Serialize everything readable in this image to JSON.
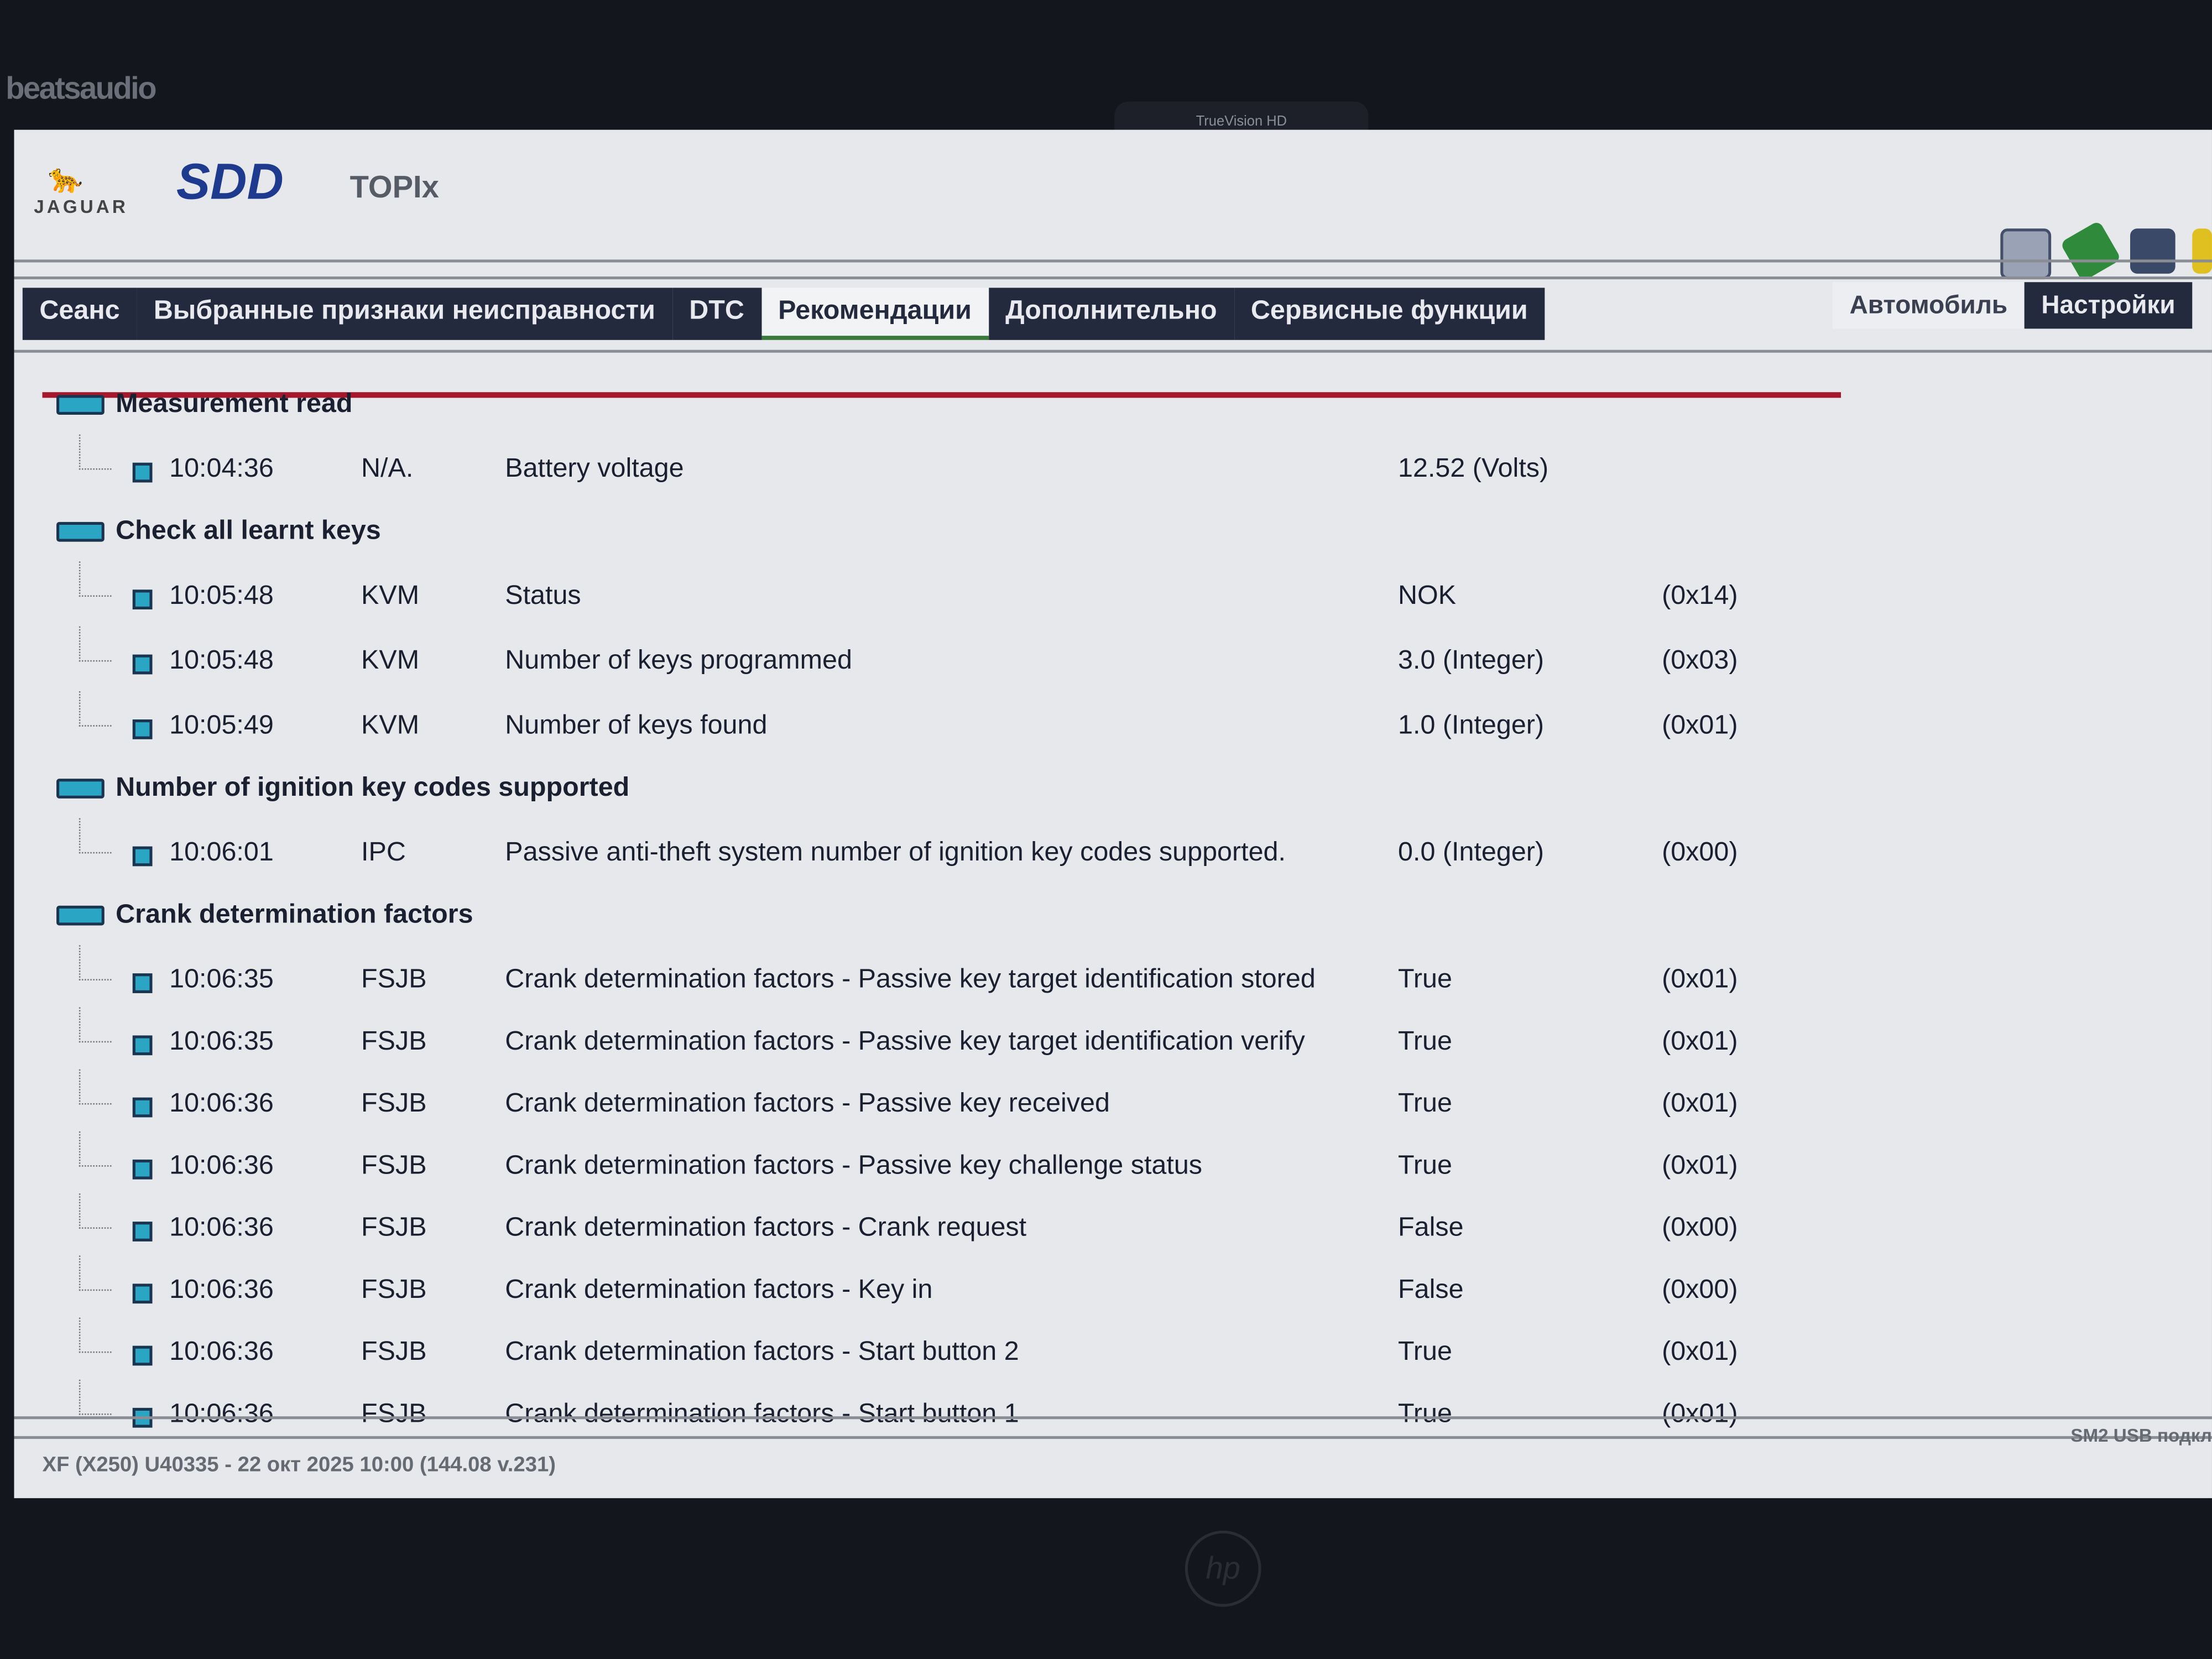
{
  "bezel": {
    "brand": "beatsaudio",
    "camera_label": "TrueVision HD",
    "laptop_logo": "hp"
  },
  "app": {
    "brand_jaguar": "JAGUAR",
    "brand_sdd": "SDD",
    "brand_topix": "TOPIx"
  },
  "toolbar_icons": [
    "camera-plus-icon",
    "green-diagnostic-icon",
    "stack-icon",
    "yellow-icon"
  ],
  "tabs": [
    {
      "label": "Сеанс",
      "active": false
    },
    {
      "label": "Выбранные признаки неисправности",
      "active": false
    },
    {
      "label": "DTC",
      "active": false
    },
    {
      "label": "Рекомендации",
      "active": true
    },
    {
      "label": "Дополнительно",
      "active": false
    },
    {
      "label": "Сервисные функции",
      "active": false
    }
  ],
  "right_tabs": [
    {
      "label": "Автомобиль",
      "active": true
    },
    {
      "label": "Настройки",
      "active": false
    }
  ],
  "groups": [
    {
      "title": "Measurement read",
      "rows": [
        {
          "time": "10:04:36",
          "module": "N/A.",
          "desc": "Battery voltage",
          "value": "12.52 (Volts)",
          "hex": ""
        }
      ]
    },
    {
      "title": "Check all learnt keys",
      "rows": [
        {
          "time": "10:05:48",
          "module": "KVM",
          "desc": "Status",
          "value": "NOK",
          "hex": "(0x14)"
        },
        {
          "time": "10:05:48",
          "module": "KVM",
          "desc": "Number of keys programmed",
          "value": "3.0 (Integer)",
          "hex": "(0x03)"
        },
        {
          "time": "10:05:49",
          "module": "KVM",
          "desc": "Number of keys found",
          "value": "1.0 (Integer)",
          "hex": "(0x01)"
        }
      ]
    },
    {
      "title": "Number of ignition key codes supported",
      "rows": [
        {
          "time": "10:06:01",
          "module": "IPC",
          "desc": "Passive anti-theft system number of ignition key codes supported.",
          "value": "0.0 (Integer)",
          "hex": "(0x00)"
        }
      ]
    },
    {
      "title": "Crank determination factors",
      "rows": [
        {
          "time": "10:06:35",
          "module": "FSJB",
          "desc": "Crank determination factors - Passive key target identification stored",
          "value": "True",
          "hex": "(0x01)"
        },
        {
          "time": "10:06:35",
          "module": "FSJB",
          "desc": "Crank determination factors - Passive key target identification verify",
          "value": "True",
          "hex": "(0x01)"
        },
        {
          "time": "10:06:36",
          "module": "FSJB",
          "desc": "Crank determination factors - Passive key received",
          "value": "True",
          "hex": "(0x01)"
        },
        {
          "time": "10:06:36",
          "module": "FSJB",
          "desc": "Crank determination factors - Passive key challenge status",
          "value": "True",
          "hex": "(0x01)"
        },
        {
          "time": "10:06:36",
          "module": "FSJB",
          "desc": "Crank determination factors - Crank request",
          "value": "False",
          "hex": "(0x00)"
        },
        {
          "time": "10:06:36",
          "module": "FSJB",
          "desc": "Crank determination factors - Key in",
          "value": "False",
          "hex": "(0x00)"
        },
        {
          "time": "10:06:36",
          "module": "FSJB",
          "desc": "Crank determination factors - Start button 2",
          "value": "True",
          "hex": "(0x01)"
        },
        {
          "time": "10:06:36",
          "module": "FSJB",
          "desc": "Crank determination factors - Start button 1",
          "value": "True",
          "hex": "(0x01)"
        }
      ]
    }
  ],
  "footer": {
    "status": "XF (X250) U40335 - 22 окт 2025 10:00 (144.08 v.231)",
    "connection": "SM2 USB подкл"
  },
  "colors": {
    "tab_bg": "#242a3d",
    "accent_red": "#a5182c",
    "icon_cyan": "#2aa6c4",
    "sdd_blue": "#1e3a8f"
  }
}
